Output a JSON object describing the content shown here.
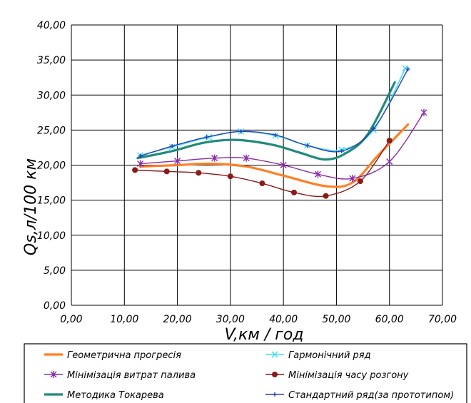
{
  "chart_data": {
    "type": "line",
    "title": "",
    "xlabel": "V,км / год",
    "ylabel": "Qs,л/100 км",
    "xlim": [
      0,
      70
    ],
    "ylim": [
      0,
      40
    ],
    "x_ticks": [
      "0,00",
      "10,00",
      "20,00",
      "30,00",
      "40,00",
      "50,00",
      "60,00",
      "70,00"
    ],
    "y_ticks": [
      "0,00",
      "5,00",
      "10,00",
      "15,00",
      "20,00",
      "25,00",
      "30,00",
      "35,00",
      "40,00"
    ],
    "grid": true,
    "legend_position": "bottom",
    "series": [
      {
        "name": "Геометрична прогресія",
        "color": "#ff7f27",
        "width": 3.2,
        "marker": "none",
        "x": [
          13,
          20,
          26,
          33,
          40,
          48,
          53,
          58,
          63.5
        ],
        "y": [
          19.8,
          20.0,
          20.2,
          19.8,
          18.5,
          17.0,
          17.5,
          21.5,
          25.8
        ]
      },
      {
        "name": "Гармонічний ряд",
        "color": "#40e0f0",
        "width": 1.6,
        "marker": "cross",
        "x": [
          13,
          19,
          26,
          32,
          38.5,
          44.5,
          51,
          57,
          63
        ],
        "y": [
          21.4,
          22.6,
          24.0,
          24.8,
          24.2,
          22.8,
          22.2,
          25.0,
          33.8
        ]
      },
      {
        "name": "Мінімізація витрат палива",
        "color": "#8a2ba8",
        "width": 1.4,
        "marker": "star",
        "x": [
          13,
          20,
          27,
          33,
          40,
          46.5,
          53,
          60,
          66.5
        ],
        "y": [
          20.2,
          20.6,
          21.0,
          21.0,
          20.0,
          18.7,
          18.1,
          20.5,
          27.5
        ]
      },
      {
        "name": "Мінімізація часу розгону",
        "color": "#8b1a1a",
        "width": 1.4,
        "marker": "dot",
        "x": [
          12,
          18,
          24,
          30,
          36,
          42,
          48,
          54.5,
          60
        ],
        "y": [
          19.3,
          19.1,
          18.9,
          18.4,
          17.4,
          16.1,
          15.6,
          17.7,
          23.5
        ]
      },
      {
        "name": "Методика Токарева",
        "color": "#1f8a7a",
        "width": 3.2,
        "marker": "none",
        "x": [
          12.5,
          19,
          25,
          31,
          38,
          43,
          48,
          52,
          56,
          61
        ],
        "y": [
          21.0,
          22.0,
          23.2,
          23.6,
          22.9,
          21.8,
          20.8,
          21.8,
          24.5,
          31.8
        ]
      },
      {
        "name": "Стандартний ряд(за прототипом)",
        "color": "#2a3db8",
        "width": 1.4,
        "marker": "plus",
        "x": [
          13,
          19,
          25.5,
          32,
          38.5,
          44.5,
          51,
          57,
          63.5
        ],
        "y": [
          21.3,
          22.7,
          24.0,
          24.8,
          24.3,
          22.8,
          22.0,
          25.2,
          33.7
        ]
      }
    ]
  }
}
